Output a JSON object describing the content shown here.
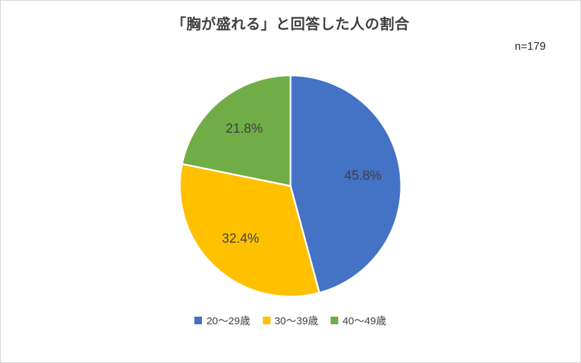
{
  "chart_data": {
    "type": "pie",
    "title": "「胸が盛れる」と回答した人の割合",
    "sample_label": "n=179",
    "start_angle_deg": 0,
    "direction": "clockwise",
    "legend_position": "bottom",
    "slices": [
      {
        "key": "20-29",
        "label": "20〜29歳",
        "value": 45.8,
        "display": "45.8%",
        "color": "#4472C4"
      },
      {
        "key": "30-39",
        "label": "30〜39歳",
        "value": 32.4,
        "display": "32.4%",
        "color": "#FFC000"
      },
      {
        "key": "40-49",
        "label": "40〜49歳",
        "value": 21.8,
        "display": "21.8%",
        "color": "#70AD47"
      }
    ]
  },
  "styles": {
    "title_color": "#404040",
    "label_color": "#404040",
    "border_color": "#d2d2d2",
    "background": "#ffffff",
    "slice_separator": "#ffffff"
  }
}
